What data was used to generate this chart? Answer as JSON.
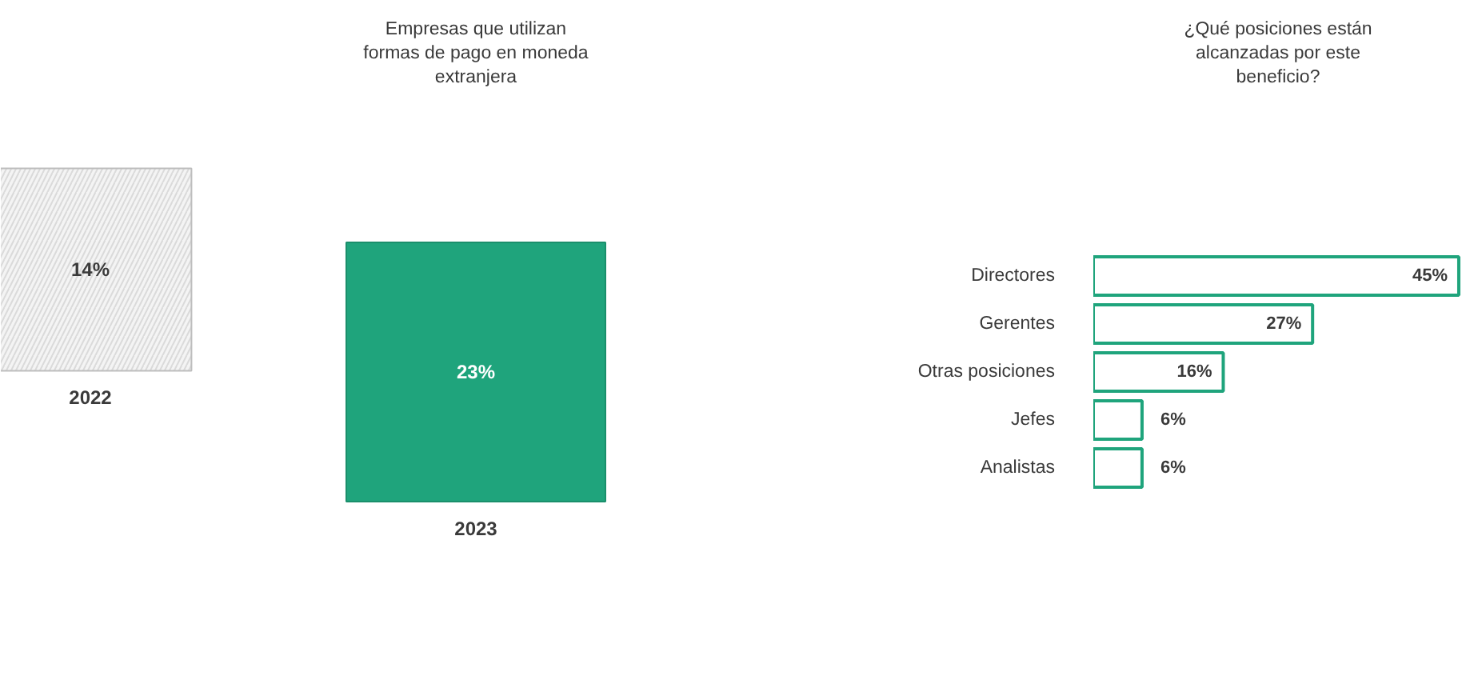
{
  "chart_data": [
    {
      "type": "other",
      "title": "Empresas que utilizan formas de pago en moneda extranjera",
      "categories": [
        "2022",
        "2023"
      ],
      "values": [
        14,
        23
      ],
      "value_labels": [
        "14%",
        "23%"
      ],
      "colors": [
        "#f4f4f4",
        "#1fa47c"
      ]
    },
    {
      "type": "bar",
      "orientation": "horizontal",
      "title": "¿Qué posiciones están alcanzadas por este beneficio?",
      "categories": [
        "Directores",
        "Gerentes",
        "Otras posiciones",
        "Jefes",
        "Analistas"
      ],
      "values": [
        45,
        27,
        16,
        6,
        6
      ],
      "value_labels": [
        "45%",
        "27%",
        "16%",
        "6%",
        "6%"
      ],
      "color": "#1fa47c"
    }
  ]
}
